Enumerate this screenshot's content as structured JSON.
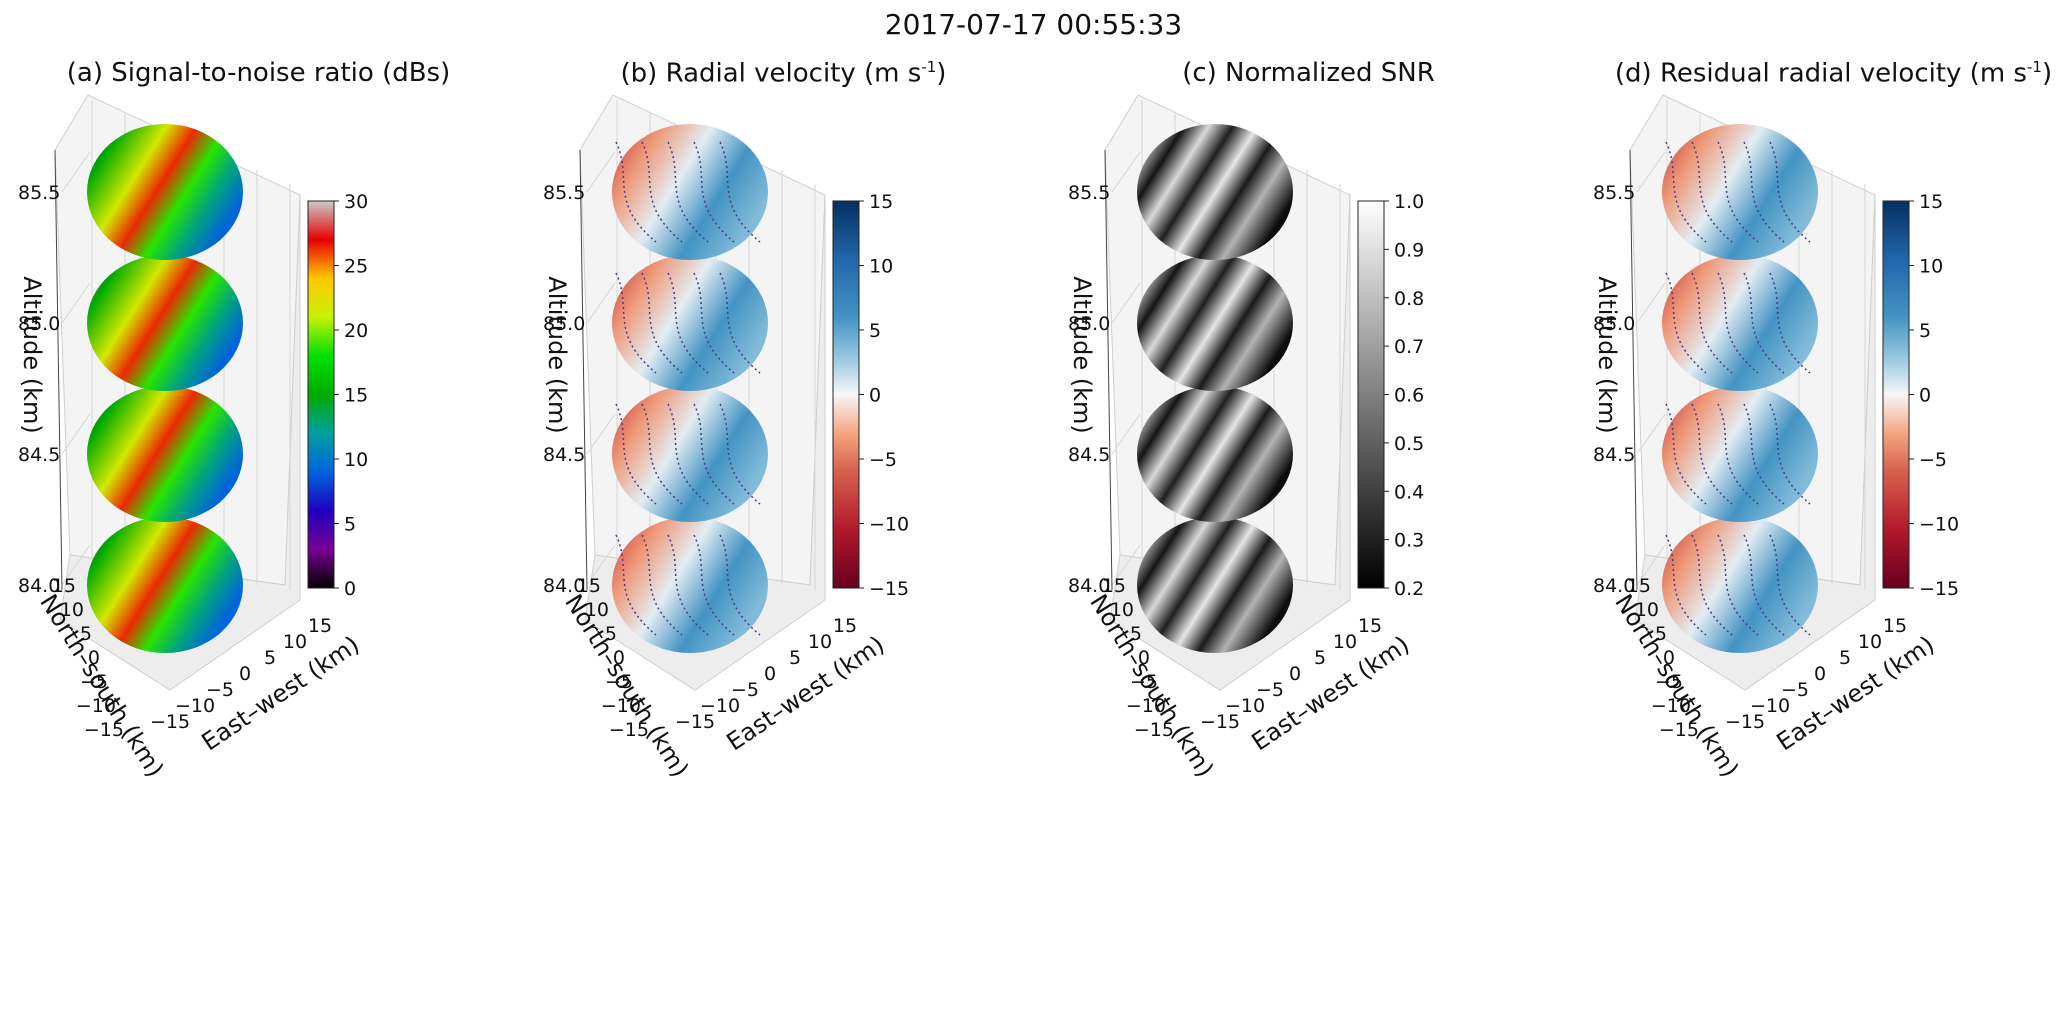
{
  "figure": {
    "suptitle": "2017-07-17 00:55:33"
  },
  "chart_data": [
    {
      "type": "heatmap",
      "panel": "a",
      "title": "(a) Signal-to-noise ratio (dBs)",
      "title_unit_sup": "",
      "colormap": "nipy_spectral",
      "colorbar": {
        "min": 0,
        "max": 30,
        "ticks": [
          "0",
          "5",
          "10",
          "15",
          "20",
          "25",
          "30"
        ]
      },
      "contours": false,
      "altitude_slices_km": [
        84.0,
        84.5,
        85.0,
        85.5
      ],
      "zlabel": "Altitude (km)",
      "zticks": [
        "84.0",
        "84.5",
        "85.0",
        "85.5"
      ],
      "xlabel": "East–west (km)",
      "ylabel": "North–south (km)",
      "xticks": [
        "−15",
        "−10",
        "−5",
        "0",
        "5",
        "10",
        "15"
      ],
      "yticks": [
        "−15",
        "−10",
        "−5",
        "0",
        "5",
        "10",
        "15"
      ],
      "xlim": [
        -15,
        15
      ],
      "ylim": [
        -15,
        15
      ]
    },
    {
      "type": "heatmap",
      "panel": "b",
      "title": "(b) Radial velocity (m s",
      "title_unit_sup": "-1",
      "colormap": "RdBu",
      "colorbar": {
        "min": -15,
        "max": 15,
        "ticks": [
          "−15",
          "−10",
          "−5",
          "0",
          "5",
          "10",
          "15"
        ]
      },
      "contours": true,
      "altitude_slices_km": [
        84.0,
        84.5,
        85.0,
        85.5
      ],
      "zlabel": "Altitude (km)",
      "zticks": [
        "84.0",
        "84.5",
        "85.0",
        "85.5"
      ],
      "xlabel": "East–west (km)",
      "ylabel": "North–south (km)",
      "xticks": [
        "−15",
        "−10",
        "−5",
        "0",
        "5",
        "10",
        "15"
      ],
      "yticks": [
        "−15",
        "−10",
        "−5",
        "0",
        "5",
        "10",
        "15"
      ],
      "xlim": [
        -15,
        15
      ],
      "ylim": [
        -15,
        15
      ]
    },
    {
      "type": "heatmap",
      "panel": "c",
      "title": "(c) Normalized SNR",
      "title_unit_sup": "",
      "colormap": "gray",
      "colorbar": {
        "min": 0.2,
        "max": 1.0,
        "ticks": [
          "0.2",
          "0.3",
          "0.4",
          "0.5",
          "0.6",
          "0.7",
          "0.8",
          "0.9",
          "1.0"
        ]
      },
      "contours": false,
      "altitude_slices_km": [
        84.0,
        84.5,
        85.0,
        85.5
      ],
      "zlabel": "Altitude (km)",
      "zticks": [
        "84.0",
        "84.5",
        "85.0",
        "85.5"
      ],
      "xlabel": "East–west (km)",
      "ylabel": "North–south (km)",
      "xticks": [
        "−15",
        "−10",
        "−5",
        "0",
        "5",
        "10",
        "15"
      ],
      "yticks": [
        "−15",
        "−10",
        "−5",
        "0",
        "5",
        "10",
        "15"
      ],
      "xlim": [
        -15,
        15
      ],
      "ylim": [
        -15,
        15
      ]
    },
    {
      "type": "heatmap",
      "panel": "d",
      "title": "(d) Residual radial velocity (m s",
      "title_unit_sup": "-1",
      "colormap": "RdBu",
      "colorbar": {
        "min": -15,
        "max": 15,
        "ticks": [
          "−15",
          "−10",
          "−5",
          "0",
          "5",
          "10",
          "15"
        ]
      },
      "contours": true,
      "altitude_slices_km": [
        84.0,
        84.5,
        85.0,
        85.5
      ],
      "zlabel": "Altitude (km)",
      "zticks": [
        "84.0",
        "84.5",
        "85.0",
        "85.5"
      ],
      "xlabel": "East–west (km)",
      "ylabel": "North–south (km)",
      "xticks": [
        "−15",
        "−10",
        "−5",
        "0",
        "5",
        "10",
        "15"
      ],
      "yticks": [
        "−15",
        "−10",
        "−5",
        "0",
        "5",
        "10",
        "15"
      ],
      "xlim": [
        -15,
        15
      ],
      "ylim": [
        -15,
        15
      ]
    }
  ]
}
